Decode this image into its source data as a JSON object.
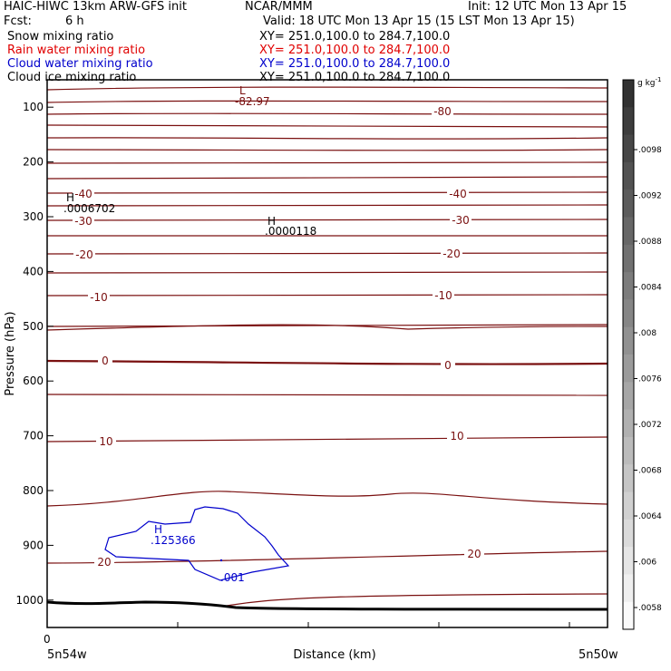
{
  "header": {
    "model": "HAIC-HIWC 13km ARW-GFS init",
    "center": "NCAR/MMM",
    "init": "Init: 12 UTC Mon 13 Apr 15",
    "fcst_label": "Fcst:",
    "fcst_value": "6 h",
    "valid": "Valid: 18 UTC Mon 13 Apr 15 (15 LST Mon 13 Apr 15)"
  },
  "fields": [
    {
      "name": "Snow mixing ratio",
      "xy": "XY= 251.0,100.0 to 284.7,100.0",
      "color": "#000000"
    },
    {
      "name": "Rain water mixing ratio",
      "xy": "XY= 251.0,100.0 to 284.7,100.0",
      "color": "#e00000"
    },
    {
      "name": "Cloud water mixing ratio",
      "xy": "XY= 251.0,100.0 to 284.7,100.0",
      "color": "#0000cc"
    },
    {
      "name": "Cloud ice mixing ratio",
      "xy": "XY= 251.0,100.0 to 284.7,100.0",
      "color": "#000000"
    }
  ],
  "chart_data": {
    "type": "contour-cross-section",
    "ylabel": "Pressure (hPa)",
    "xlabel": "Distance (km)",
    "ylim": [
      1050,
      50
    ],
    "y_ticks": [
      100,
      200,
      300,
      400,
      500,
      600,
      700,
      800,
      900,
      1000
    ],
    "x_start_label": "0",
    "left_end_label": "5n54w",
    "right_end_label": "5n50w",
    "colorbar": {
      "unit": "g kg",
      "unit_exp": "-1",
      "ticks": [
        ".0098",
        ".0092",
        ".0088",
        ".0084",
        ".008",
        ".0076",
        ".0072",
        ".0068",
        ".0064",
        ".006",
        ".0058"
      ]
    },
    "isotherm_labels": [
      {
        "text": "-80"
      },
      {
        "text": "-40"
      },
      {
        "text": "-40"
      },
      {
        "text": "-30"
      },
      {
        "text": "-30"
      },
      {
        "text": "-20"
      },
      {
        "text": "-20"
      },
      {
        "text": "-10"
      },
      {
        "text": "-10"
      },
      {
        "text": "0"
      },
      {
        "text": "0"
      },
      {
        "text": "10"
      },
      {
        "text": "10"
      },
      {
        "text": "20"
      },
      {
        "text": "20"
      }
    ],
    "extrema": [
      {
        "type": "L",
        "value": "-82.97",
        "color": "#7a1010"
      },
      {
        "type": "H",
        "value": ".0006702",
        "color": "#000000"
      },
      {
        "type": "H",
        "value": ".0000118",
        "color": "#000000"
      },
      {
        "type": "H",
        "value": ".125366",
        "color": "#0000cc"
      }
    ],
    "cloud_contour_label": ".001",
    "colors": {
      "isotherm": "#7a1010",
      "cloud": "#0000cc",
      "terrain": "#000000"
    }
  }
}
